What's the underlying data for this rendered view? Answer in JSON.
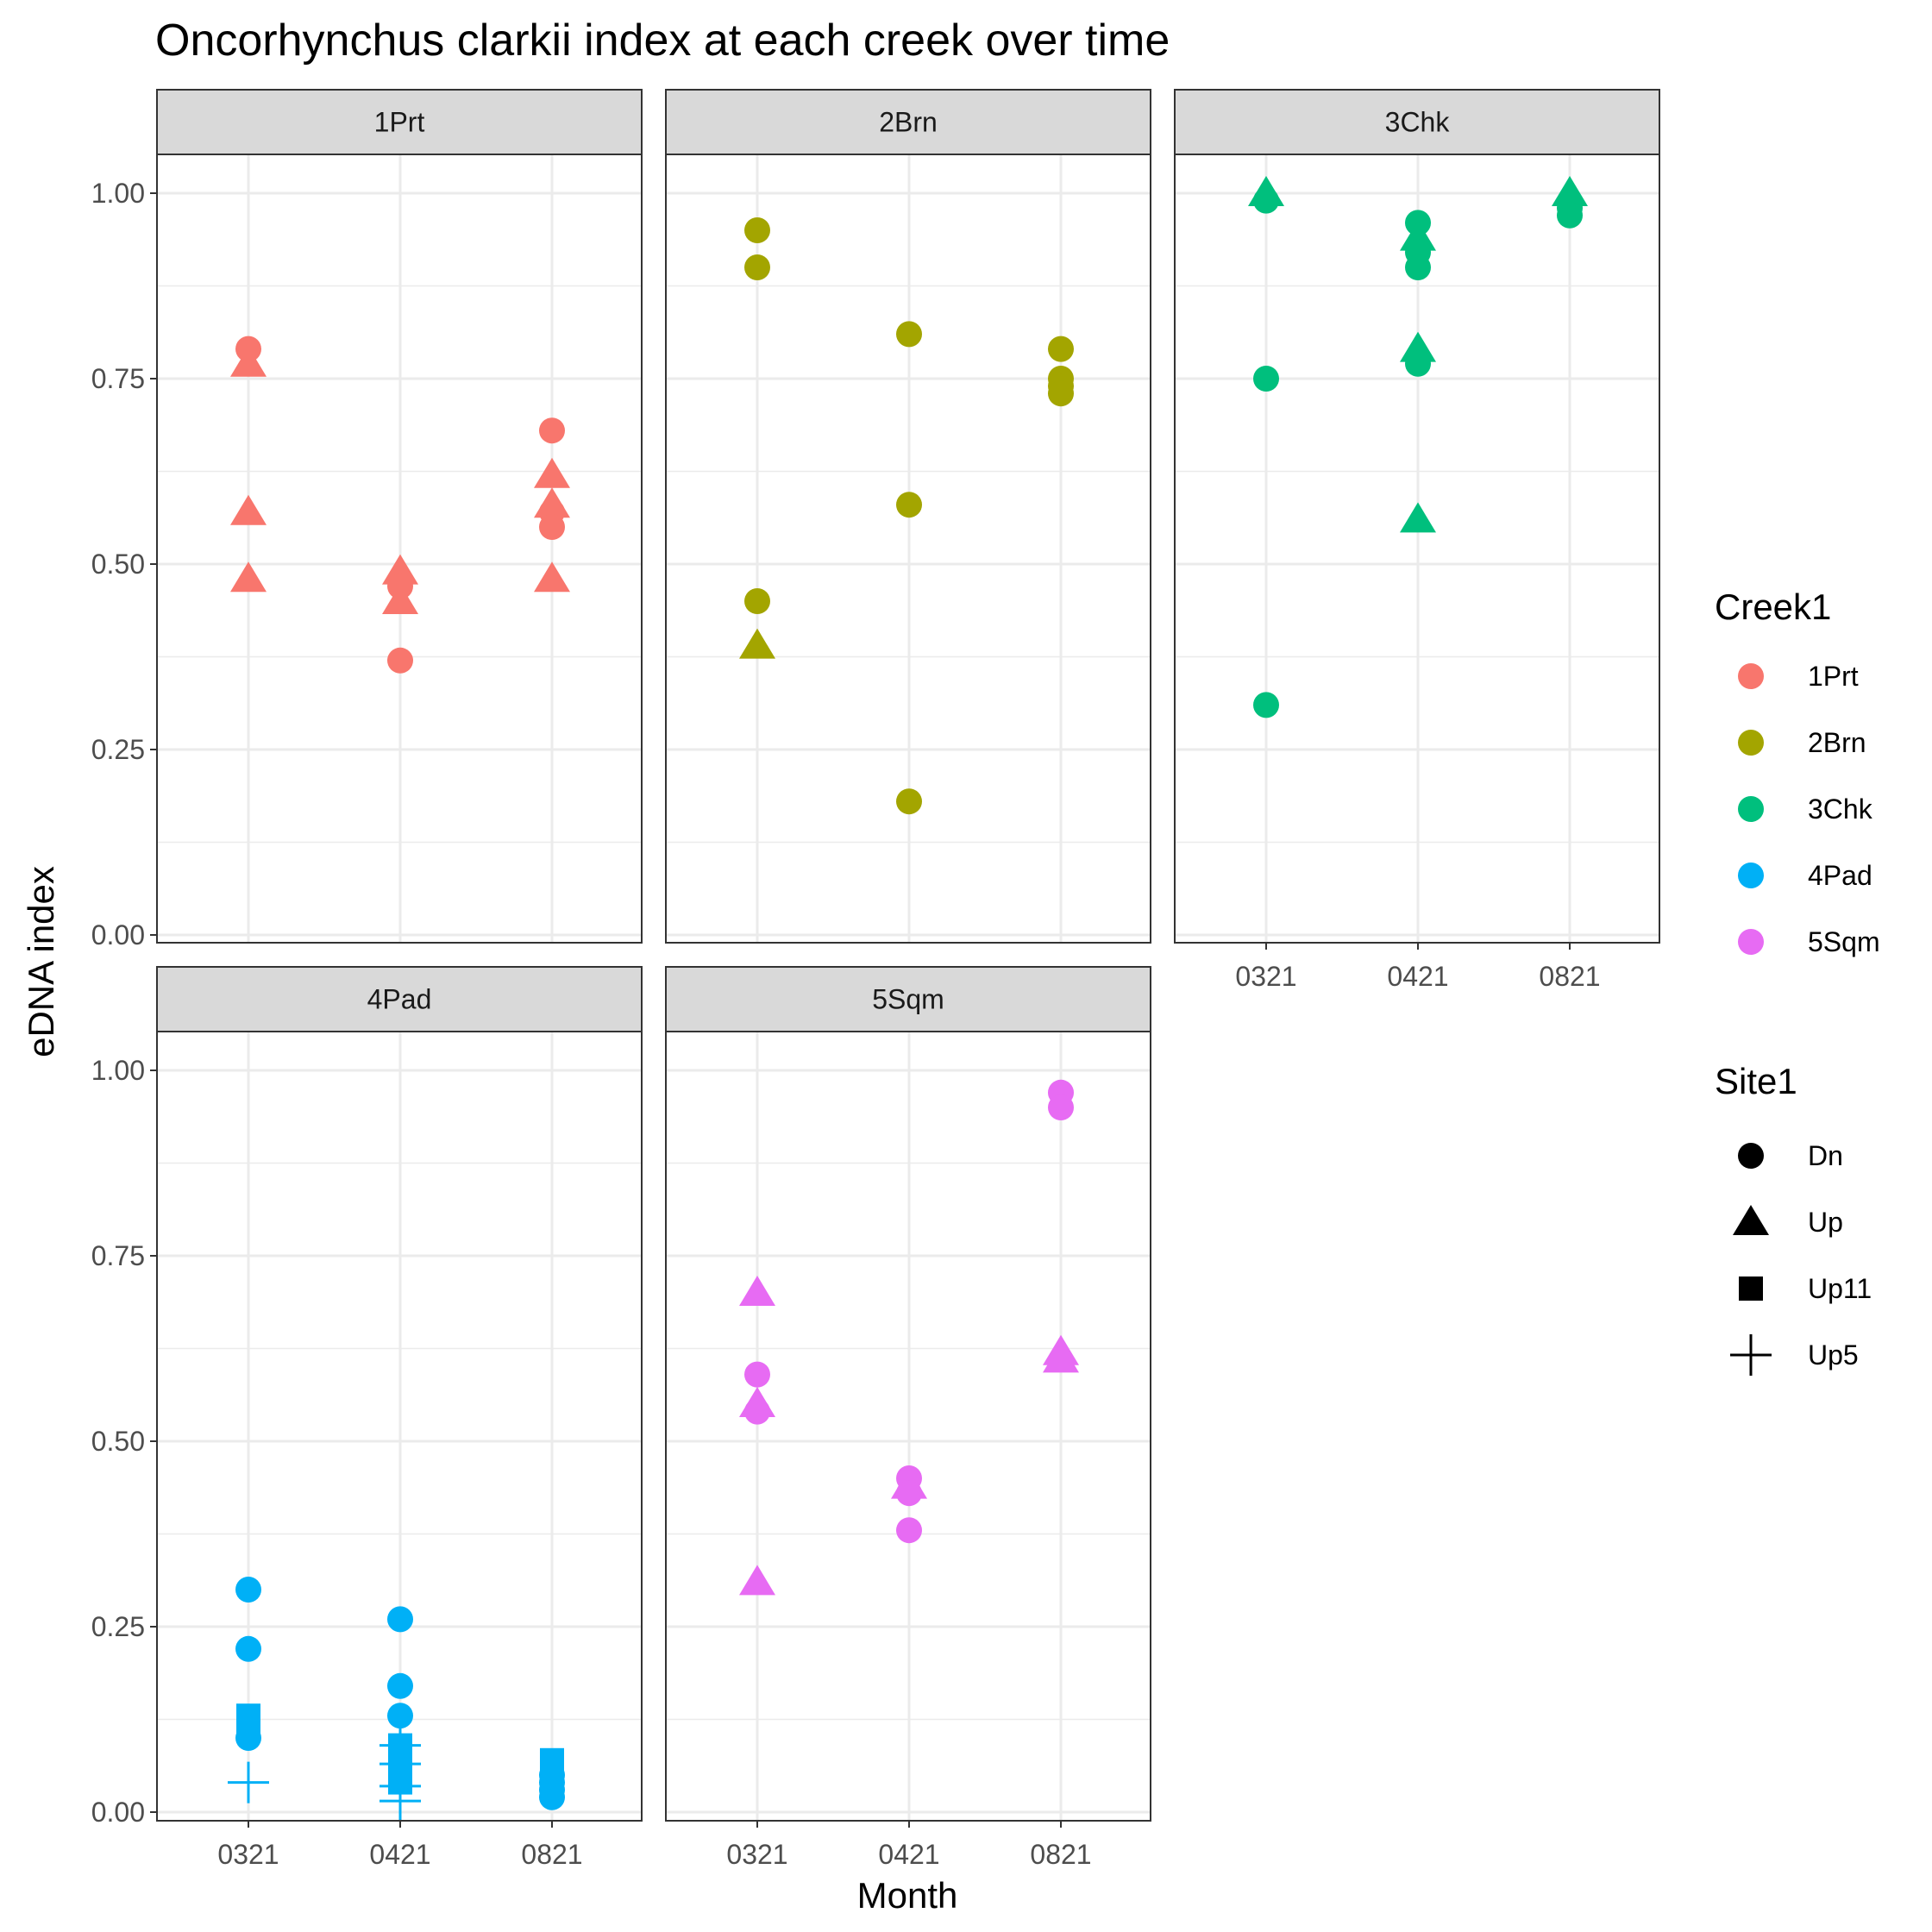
{
  "chart_data": {
    "type": "scatter",
    "title": "Oncorhynchus clarkii index at each creek over time",
    "xlabel": "Month",
    "ylabel": "eDNA index",
    "x_categories": [
      "0321",
      "0421",
      "0821"
    ],
    "y_ticks": [
      "0.00",
      "0.25",
      "0.50",
      "0.75",
      "1.00"
    ],
    "ylim": [
      0,
      1.07
    ],
    "grid": true,
    "facets": [
      {
        "label": "1Prt",
        "color": "#F8766D",
        "points": [
          {
            "x": "0321",
            "y": 0.79,
            "site": "Dn"
          },
          {
            "x": "0321",
            "y": 0.77,
            "site": "Up"
          },
          {
            "x": "0321",
            "y": 0.57,
            "site": "Up"
          },
          {
            "x": "0321",
            "y": 0.48,
            "site": "Up"
          },
          {
            "x": "0421",
            "y": 0.49,
            "site": "Up"
          },
          {
            "x": "0421",
            "y": 0.47,
            "site": "Dn"
          },
          {
            "x": "0421",
            "y": 0.45,
            "site": "Up"
          },
          {
            "x": "0421",
            "y": 0.37,
            "site": "Dn"
          },
          {
            "x": "0821",
            "y": 0.68,
            "site": "Dn"
          },
          {
            "x": "0821",
            "y": 0.62,
            "site": "Up"
          },
          {
            "x": "0821",
            "y": 0.58,
            "site": "Up"
          },
          {
            "x": "0821",
            "y": 0.57,
            "site": "Dn"
          },
          {
            "x": "0821",
            "y": 0.55,
            "site": "Dn"
          },
          {
            "x": "0821",
            "y": 0.48,
            "site": "Up"
          }
        ]
      },
      {
        "label": "2Brn",
        "color": "#A3A500",
        "points": [
          {
            "x": "0321",
            "y": 0.95,
            "site": "Dn"
          },
          {
            "x": "0321",
            "y": 0.9,
            "site": "Dn"
          },
          {
            "x": "0321",
            "y": 0.45,
            "site": "Dn"
          },
          {
            "x": "0321",
            "y": 0.39,
            "site": "Up"
          },
          {
            "x": "0421",
            "y": 0.81,
            "site": "Dn"
          },
          {
            "x": "0421",
            "y": 0.58,
            "site": "Dn"
          },
          {
            "x": "0421",
            "y": 0.18,
            "site": "Dn"
          },
          {
            "x": "0821",
            "y": 0.79,
            "site": "Dn"
          },
          {
            "x": "0821",
            "y": 0.75,
            "site": "Dn"
          },
          {
            "x": "0821",
            "y": 0.74,
            "site": "Dn"
          },
          {
            "x": "0821",
            "y": 0.73,
            "site": "Dn"
          }
        ]
      },
      {
        "label": "3Chk",
        "color": "#00BF7D",
        "points": [
          {
            "x": "0321",
            "y": 1.0,
            "site": "Up"
          },
          {
            "x": "0321",
            "y": 0.99,
            "site": "Dn"
          },
          {
            "x": "0321",
            "y": 0.75,
            "site": "Dn"
          },
          {
            "x": "0321",
            "y": 0.31,
            "site": "Dn"
          },
          {
            "x": "0421",
            "y": 0.96,
            "site": "Dn"
          },
          {
            "x": "0421",
            "y": 0.94,
            "site": "Up"
          },
          {
            "x": "0421",
            "y": 0.92,
            "site": "Dn"
          },
          {
            "x": "0421",
            "y": 0.9,
            "site": "Dn"
          },
          {
            "x": "0421",
            "y": 0.79,
            "site": "Up"
          },
          {
            "x": "0421",
            "y": 0.77,
            "site": "Dn"
          },
          {
            "x": "0421",
            "y": 0.56,
            "site": "Up"
          },
          {
            "x": "0821",
            "y": 1.0,
            "site": "Up"
          },
          {
            "x": "0821",
            "y": 0.98,
            "site": "Dn"
          },
          {
            "x": "0821",
            "y": 0.97,
            "site": "Dn"
          }
        ]
      },
      {
        "label": "4Pad",
        "color": "#00B0F6",
        "points": [
          {
            "x": "0321",
            "y": 0.3,
            "site": "Dn"
          },
          {
            "x": "0321",
            "y": 0.22,
            "site": "Dn"
          },
          {
            "x": "0321",
            "y": 0.13,
            "site": "Up11"
          },
          {
            "x": "0321",
            "y": 0.12,
            "site": "Up11"
          },
          {
            "x": "0321",
            "y": 0.1,
            "site": "Dn"
          },
          {
            "x": "0321",
            "y": 0.04,
            "site": "Up5"
          },
          {
            "x": "0421",
            "y": 0.26,
            "site": "Dn"
          },
          {
            "x": "0421",
            "y": 0.17,
            "site": "Dn"
          },
          {
            "x": "0421",
            "y": 0.13,
            "site": "Dn"
          },
          {
            "x": "0421",
            "y": 0.09,
            "site": "Up11"
          },
          {
            "x": "0421",
            "y": 0.09,
            "site": "Up5"
          },
          {
            "x": "0421",
            "y": 0.065,
            "site": "Up5"
          },
          {
            "x": "0421",
            "y": 0.06,
            "site": "Up11"
          },
          {
            "x": "0421",
            "y": 0.04,
            "site": "Up11"
          },
          {
            "x": "0421",
            "y": 0.035,
            "site": "Up5"
          },
          {
            "x": "0421",
            "y": 0.015,
            "site": "Up5"
          },
          {
            "x": "0821",
            "y": 0.07,
            "site": "Up11"
          },
          {
            "x": "0821",
            "y": 0.06,
            "site": "Up11"
          },
          {
            "x": "0821",
            "y": 0.05,
            "site": "Dn"
          },
          {
            "x": "0821",
            "y": 0.04,
            "site": "Dn"
          },
          {
            "x": "0821",
            "y": 0.03,
            "site": "Dn"
          },
          {
            "x": "0821",
            "y": 0.02,
            "site": "Dn"
          }
        ]
      },
      {
        "label": "5Sqm",
        "color": "#E76BF3",
        "points": [
          {
            "x": "0321",
            "y": 0.7,
            "site": "Up"
          },
          {
            "x": "0321",
            "y": 0.59,
            "site": "Dn"
          },
          {
            "x": "0321",
            "y": 0.55,
            "site": "Up"
          },
          {
            "x": "0321",
            "y": 0.54,
            "site": "Dn"
          },
          {
            "x": "0321",
            "y": 0.31,
            "site": "Up"
          },
          {
            "x": "0421",
            "y": 0.45,
            "site": "Dn"
          },
          {
            "x": "0421",
            "y": 0.44,
            "site": "Up"
          },
          {
            "x": "0421",
            "y": 0.43,
            "site": "Dn"
          },
          {
            "x": "0421",
            "y": 0.38,
            "site": "Dn"
          },
          {
            "x": "0821",
            "y": 0.97,
            "site": "Dn"
          },
          {
            "x": "0821",
            "y": 0.95,
            "site": "Dn"
          },
          {
            "x": "0821",
            "y": 0.62,
            "site": "Up"
          },
          {
            "x": "0821",
            "y": 0.61,
            "site": "Up"
          }
        ]
      }
    ],
    "legends": {
      "color": {
        "title": "Creek1",
        "entries": [
          {
            "label": "1Prt",
            "color": "#F8766D"
          },
          {
            "label": "2Brn",
            "color": "#A3A500"
          },
          {
            "label": "3Chk",
            "color": "#00BF7D"
          },
          {
            "label": "4Pad",
            "color": "#00B0F6"
          },
          {
            "label": "5Sqm",
            "color": "#E76BF3"
          }
        ]
      },
      "shape": {
        "title": "Site1",
        "entries": [
          {
            "label": "Dn",
            "shape": "circle"
          },
          {
            "label": "Up",
            "shape": "triangle"
          },
          {
            "label": "Up11",
            "shape": "square"
          },
          {
            "label": "Up5",
            "shape": "plus"
          }
        ]
      },
      "placement": "right"
    }
  }
}
